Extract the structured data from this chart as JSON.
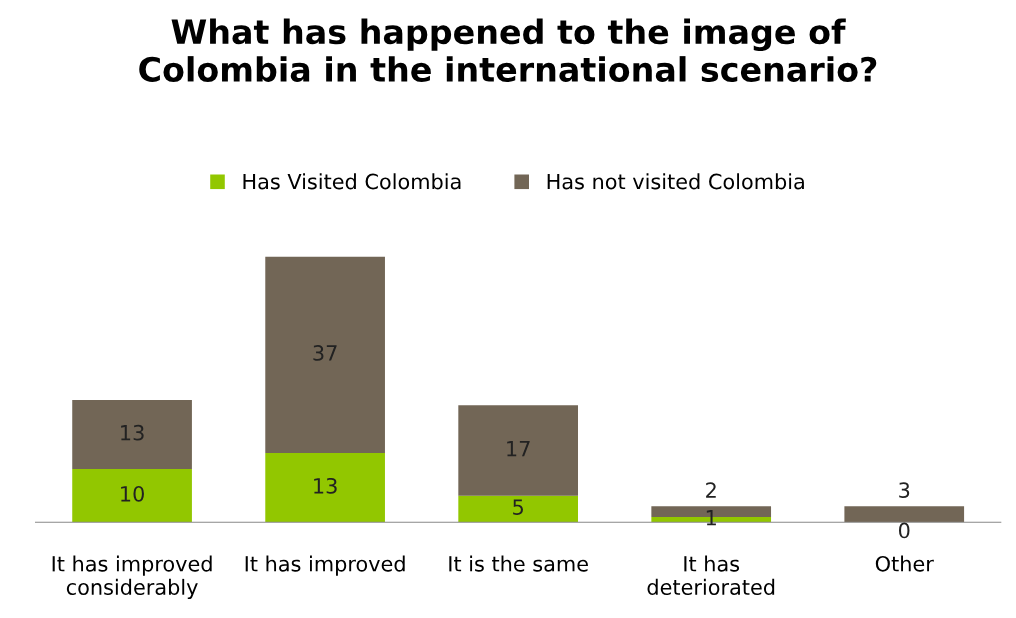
{
  "chart_data": {
    "type": "bar",
    "title": "What has happened to the image of\nColombia in the international scenario?",
    "categories": [
      "It has improved\nconsiderably",
      "It has improved",
      "It is the same",
      "It has\ndeteriorated",
      "Other"
    ],
    "stacked": true,
    "data_labels": true,
    "legend": "top",
    "grid": false,
    "series": [
      {
        "name": "Has Visited Colombia",
        "color": "#92c700",
        "values": [
          10,
          13,
          5,
          1,
          0
        ]
      },
      {
        "name": "Has not visited Colombia",
        "color": "#726656",
        "values": [
          13,
          37,
          17,
          2,
          3
        ]
      }
    ]
  }
}
